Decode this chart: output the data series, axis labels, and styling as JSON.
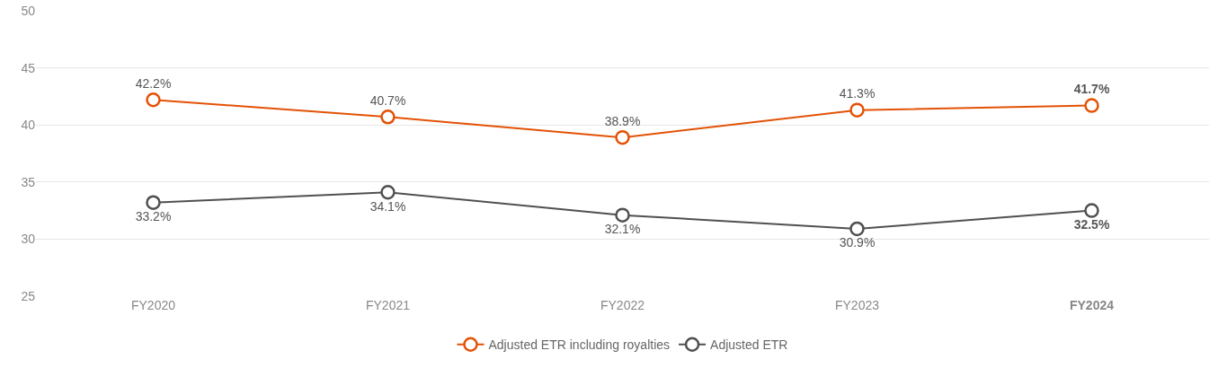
{
  "chart_data": {
    "type": "line",
    "categories": [
      "FY2020",
      "FY2021",
      "FY2022",
      "FY2023",
      "FY2024"
    ],
    "series": [
      {
        "name": "Adjusted ETR including royalties",
        "color": "#e35205",
        "values": [
          42.2,
          40.7,
          38.9,
          41.3,
          41.7
        ],
        "value_labels": [
          "42.2%",
          "40.7%",
          "38.9%",
          "41.3%",
          "41.7%"
        ]
      },
      {
        "name": "Adjusted ETR",
        "color": "#505050",
        "values": [
          33.2,
          34.1,
          32.1,
          30.9,
          32.5
        ],
        "value_labels": [
          "33.2%",
          "34.1%",
          "32.1%",
          "30.9%",
          "32.5%"
        ]
      }
    ],
    "ylim": [
      25,
      50
    ],
    "yticks": [
      25,
      30,
      35,
      40,
      45,
      50
    ],
    "grid": "y",
    "legend": "bottom",
    "marker": "circle",
    "line_style": "solid"
  }
}
